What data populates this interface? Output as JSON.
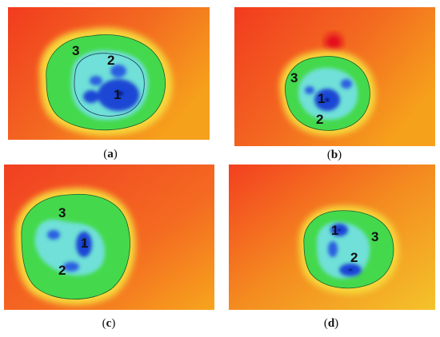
{
  "panels": [
    {
      "id": "a",
      "caption": "a",
      "zones": [
        "1",
        "2",
        "3"
      ]
    },
    {
      "id": "b",
      "caption": "b",
      "zones": [
        "1",
        "2",
        "3"
      ]
    },
    {
      "id": "c",
      "caption": "c",
      "zones": [
        "1",
        "2",
        "3"
      ]
    },
    {
      "id": "d",
      "caption": "d",
      "zones": [
        "1",
        "2",
        "3"
      ]
    }
  ],
  "colors": {
    "background_hot": "#f03a1e",
    "background_warm": "#f7a21d",
    "halo": "#f2ef35",
    "outer_zone": "#3fd84a",
    "mid_zone": "#63d7dc",
    "inner_zone": "#1b4fe0",
    "core": "#0c1f8a"
  }
}
